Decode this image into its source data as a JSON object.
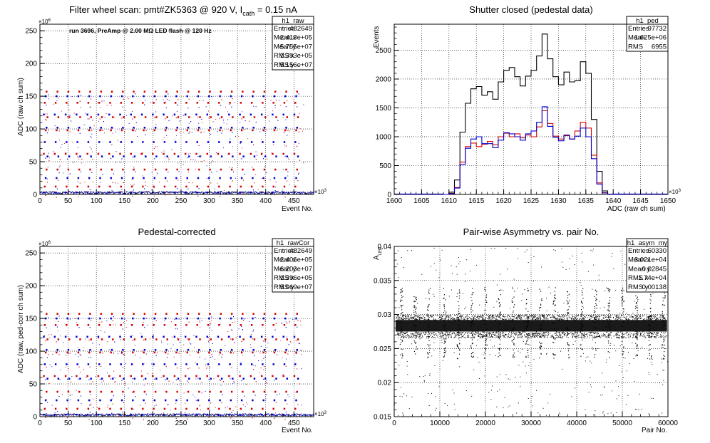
{
  "panels": {
    "raw": {
      "title": "Filter wheel scan: pmt#ZK5363 @   920 V, I",
      "title_sub": "cath",
      "title_tail": " = 0.15 nA",
      "ylabel": "ADC (raw ch sum)",
      "xlabel": "Event No.",
      "yexp": "×10",
      "yexp_pow": "6",
      "xexp": "×10",
      "xexp_pow": "3",
      "annotation": "run 3696, PreAmp @ 2.00 MΩ LED flash @  120 Hz",
      "stats": {
        "name": "h1_raw",
        "rows": [
          {
            "k": "Entries",
            "v": "482649"
          },
          {
            "k": "Mean x",
            "v": "2.413e+05"
          },
          {
            "k": "Mean y",
            "v": "5.755e+07"
          },
          {
            "k": "RMS x",
            "v": "1.393e+05"
          },
          {
            "k": "RMS y",
            "v": "5.156e+07"
          }
        ]
      }
    },
    "ped": {
      "title": "Shutter closed (pedestal data)",
      "ylabel": "Events",
      "xlabel": "ADC (raw ch sum)",
      "xexp": "×10",
      "xexp_pow": "3",
      "stats": {
        "name": "h1_ped",
        "rows": [
          {
            "k": "Entries",
            "v": "97732"
          },
          {
            "k": "Mean",
            "v": "1.625e+06"
          },
          {
            "k": "RMS",
            "v": "6955"
          }
        ]
      }
    },
    "cor": {
      "title": "Pedestal-corrected",
      "ylabel": "ADC (raw, ped-corr ch sum)",
      "xlabel": "Event No.",
      "yexp": "×10",
      "yexp_pow": "6",
      "xexp": "×10",
      "xexp_pow": "3",
      "stats": {
        "name": "h1_rawCor",
        "rows": [
          {
            "k": "Entries",
            "v": "482649"
          },
          {
            "k": "Mean x",
            "v": "2.406e+05"
          },
          {
            "k": "Mean y",
            "v": "6.203e+07"
          },
          {
            "k": "RMS x",
            "v": "1.396e+05"
          },
          {
            "k": "RMS y",
            "v": "5.069e+07"
          }
        ]
      }
    },
    "asym": {
      "title": "Pair-wise Asymmetry vs. pair No.",
      "ylabel": "A",
      "ylabel_sub": "LED",
      "xlabel": "Pair No.",
      "stats": {
        "name": "h1_asym_my",
        "rows": [
          {
            "k": "Entries",
            "v": "60330"
          },
          {
            "k": "Mean x",
            "v": "3.021e+04"
          },
          {
            "k": "Mean y",
            "v": "0.02845"
          },
          {
            "k": "RMS x",
            "v": "1.74e+04"
          },
          {
            "k": "RMS y",
            "v": "0.00138"
          }
        ]
      }
    }
  },
  "colors": {
    "red": "#d40000",
    "blue": "#0000d0",
    "black": "#000000",
    "grid": "#000000"
  },
  "chart_data": [
    {
      "type": "scatter",
      "id": "raw",
      "xlim": [
        0,
        485
      ],
      "ylim": [
        0,
        260
      ],
      "xticks": [
        0,
        50,
        100,
        150,
        200,
        250,
        300,
        350,
        400,
        450
      ],
      "yticks": [
        0,
        50,
        100,
        150,
        200,
        250
      ],
      "grid": true,
      "levels": [
        3,
        12,
        25,
        38,
        58,
        62,
        80,
        98,
        102,
        118,
        122,
        140,
        150,
        157
      ],
      "period": 19.3,
      "series": [
        {
          "color": "blue"
        },
        {
          "color": "red"
        }
      ]
    },
    {
      "type": "line",
      "id": "ped",
      "xlim": [
        1600,
        1650
      ],
      "ylim": [
        0,
        2950
      ],
      "xticks": [
        1600,
        1605,
        1610,
        1615,
        1620,
        1625,
        1630,
        1635,
        1640,
        1645,
        1650
      ],
      "yticks": [
        0,
        500,
        1000,
        1500,
        2000,
        2500
      ],
      "grid": true,
      "x": [
        1609,
        1610,
        1611,
        1612,
        1613,
        1614,
        1615,
        1616,
        1617,
        1618,
        1619,
        1620,
        1621,
        1622,
        1623,
        1624,
        1625,
        1626,
        1627,
        1628,
        1629,
        1630,
        1631,
        1632,
        1633,
        1634,
        1635,
        1636,
        1637,
        1638,
        1639,
        1640
      ],
      "series": [
        {
          "color": "black",
          "values": [
            0,
            40,
            250,
            1080,
            1580,
            1830,
            1870,
            1720,
            1780,
            1650,
            1950,
            2150,
            2200,
            2040,
            1880,
            2050,
            2150,
            2400,
            2780,
            2350,
            2040,
            1900,
            2120,
            1950,
            1970,
            2300,
            2100,
            1300,
            400,
            60,
            5,
            0
          ]
        },
        {
          "color": "red",
          "values": [
            0,
            20,
            120,
            560,
            830,
            890,
            830,
            870,
            920,
            860,
            1000,
            1060,
            1000,
            1050,
            980,
            1030,
            1000,
            1170,
            1450,
            1230,
            1010,
            960,
            1020,
            960,
            1100,
            1250,
            1150,
            680,
            200,
            30,
            2,
            0
          ]
        },
        {
          "color": "blue",
          "values": [
            0,
            15,
            110,
            520,
            800,
            960,
            1000,
            880,
            880,
            810,
            940,
            1070,
            1050,
            1000,
            940,
            1050,
            1100,
            1250,
            1520,
            1180,
            990,
            930,
            1030,
            960,
            1010,
            1150,
            1000,
            620,
            180,
            25,
            2,
            0
          ]
        }
      ]
    },
    {
      "type": "scatter",
      "id": "cor",
      "xlim": [
        0,
        485
      ],
      "ylim": [
        0,
        260
      ],
      "xticks": [
        0,
        50,
        100,
        150,
        200,
        250,
        300,
        350,
        400,
        450
      ],
      "yticks": [
        0,
        50,
        100,
        150,
        200,
        250
      ],
      "grid": true,
      "levels": [
        3,
        12,
        25,
        38,
        58,
        62,
        80,
        98,
        102,
        118,
        122,
        140,
        150,
        157
      ],
      "period": 19.3,
      "series": [
        {
          "color": "blue"
        },
        {
          "color": "red"
        }
      ]
    },
    {
      "type": "scatter",
      "id": "asym",
      "xlim": [
        0,
        60000
      ],
      "ylim": [
        0.015,
        0.04
      ],
      "xticks": [
        0,
        10000,
        20000,
        30000,
        40000,
        50000,
        60000
      ],
      "yticks": [
        0.015,
        0.02,
        0.025,
        0.03,
        0.035,
        0.04
      ],
      "grid": true,
      "band": [
        0.0275,
        0.0292
      ],
      "spikes_x": [
        1500,
        4500,
        7500,
        11000,
        14000,
        17000,
        20000,
        23000,
        26000,
        29000,
        32000,
        35000,
        38000,
        41000,
        44000,
        47000,
        50000,
        53000,
        56000,
        59000
      ],
      "series": [
        {
          "color": "black"
        }
      ]
    }
  ]
}
